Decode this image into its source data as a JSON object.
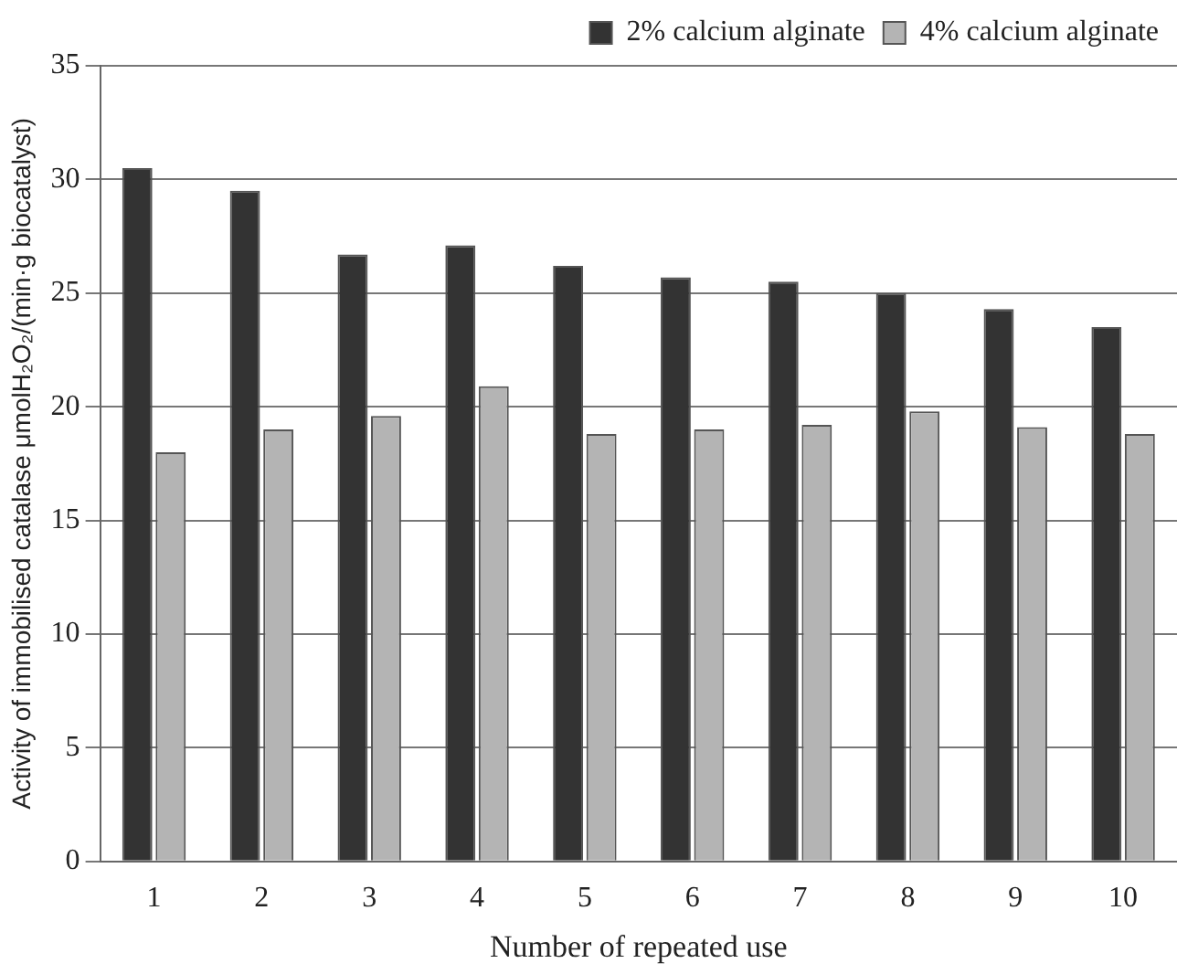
{
  "chart_data": {
    "type": "bar",
    "xlabel": "Number of repeated use",
    "ylabel": "Activity of immobilised catalase μmolH₂O₂/(min·g biocatalyst)",
    "categories": [
      "1",
      "2",
      "3",
      "4",
      "5",
      "6",
      "7",
      "8",
      "9",
      "10"
    ],
    "series": [
      {
        "name": "2% calcium alginate",
        "color": "#333333",
        "values": [
          30.5,
          29.5,
          26.7,
          27.1,
          26.2,
          25.7,
          25.5,
          25.0,
          24.3,
          23.5
        ]
      },
      {
        "name": "4% calcium alginate",
        "color": "#b4b4b4",
        "values": [
          18.0,
          19.0,
          19.6,
          20.9,
          18.8,
          19.0,
          19.2,
          19.8,
          19.1,
          18.8
        ]
      }
    ],
    "ylim": [
      0,
      35
    ],
    "yticks": [
      0,
      5,
      10,
      15,
      20,
      25,
      30,
      35
    ],
    "grid": "y",
    "legend": "top right"
  }
}
